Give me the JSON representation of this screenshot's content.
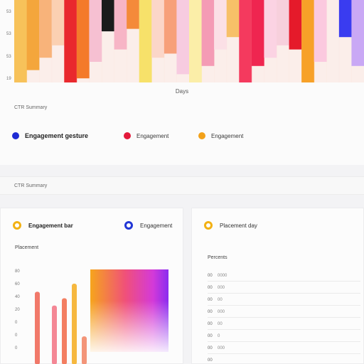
{
  "top_panel": {
    "y_ticks": [
      "53",
      "53",
      "53",
      "19"
    ],
    "x_label": "Days",
    "caption": "CTR Summary",
    "legend": [
      {
        "label": "Engagement gesture",
        "color": "#1e2bd4"
      },
      {
        "label": "Engagement",
        "color": "#e3193a"
      },
      {
        "label": "Engagement",
        "color": "#f2a11a"
      }
    ],
    "columns": [
      {
        "fill": "#f7c25a",
        "level": 1.0
      },
      {
        "fill": "#f4a63c",
        "level": 0.85
      },
      {
        "fill": "#f8b37a",
        "level": 0.7
      },
      {
        "fill": "#fbd0b2",
        "level": 0.55
      },
      {
        "fill": "#e9282d",
        "level": 1.0
      },
      {
        "fill": "#f47a2a",
        "level": 0.95
      },
      {
        "fill": "#f6c0d2",
        "level": 0.75
      },
      {
        "fill": "#1b1b1b",
        "level": 0.38
      },
      {
        "fill": "#f7b5c6",
        "level": 0.6
      },
      {
        "fill": "#f48a3a",
        "level": 0.35
      },
      {
        "fill": "#f7e16a",
        "level": 1.0
      },
      {
        "fill": "#fbd6c8",
        "level": 0.7
      },
      {
        "fill": "#f7a07a",
        "level": 0.65
      },
      {
        "fill": "#f7cbe0",
        "level": 0.9
      },
      {
        "fill": "#fbeea8",
        "level": 1.0
      },
      {
        "fill": "#f49bb5",
        "level": 0.8
      },
      {
        "fill": "#fbe0e6",
        "level": 0.6
      },
      {
        "fill": "#f7c068",
        "level": 0.45
      },
      {
        "fill": "#f43a5e",
        "level": 1.0
      },
      {
        "fill": "#ef2550",
        "level": 0.8
      },
      {
        "fill": "#fbd3e3",
        "level": 0.7
      },
      {
        "fill": "#f7d0dc",
        "level": 0.55
      },
      {
        "fill": "#e51a2a",
        "level": 0.6
      },
      {
        "fill": "#f7a128",
        "level": 1.0
      },
      {
        "fill": "#fbc9df",
        "level": 0.75
      },
      {
        "fill": "#f9f9fb",
        "level": 0.0
      },
      {
        "fill": "#3a3cf0",
        "level": 0.45
      },
      {
        "fill": "#c9a8f5",
        "level": 0.8
      }
    ]
  },
  "strip": {
    "label": "CTR Summary"
  },
  "left_card": {
    "title": "Engagement bar",
    "second_legend": "Engagement",
    "sub_label": "Placement",
    "y_ticks": [
      "80",
      "60",
      "40",
      "20",
      "0",
      "0",
      "0"
    ],
    "bars": [
      {
        "color": "#f06a5a",
        "level": 0.9
      },
      {
        "color": "#f37a8a",
        "level": 0.73
      },
      {
        "color": "#f27050",
        "level": 0.82
      },
      {
        "color": "#f5b02a",
        "level": 1.0
      },
      {
        "color": "#f28a6a",
        "level": 0.35
      }
    ]
  },
  "right_card": {
    "title": "Placement day",
    "sub_label": "Percents",
    "rows": [
      {
        "a": "00",
        "b": "0000"
      },
      {
        "a": "00",
        "b": "000"
      },
      {
        "a": "00",
        "b": "00"
      },
      {
        "a": "00",
        "b": "000"
      },
      {
        "a": "00",
        "b": "00"
      },
      {
        "a": "00",
        "b": "0"
      },
      {
        "a": "00",
        "b": "000"
      },
      {
        "a": "00",
        "b": ""
      }
    ]
  }
}
